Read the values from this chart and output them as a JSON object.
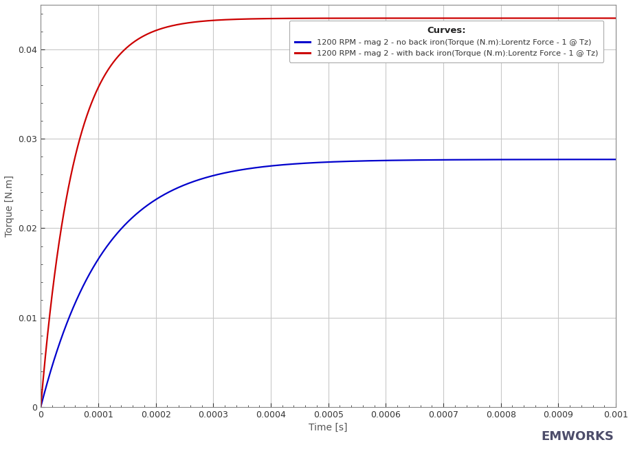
{
  "title": "",
  "xlabel": "Time [s]",
  "ylabel": "Torque [N.m]",
  "xlim": [
    0,
    0.001
  ],
  "ylim": [
    0,
    0.045
  ],
  "yticks": [
    0,
    0.01,
    0.02,
    0.03,
    0.04
  ],
  "xticks": [
    0,
    0.0001,
    0.0002,
    0.0003,
    0.0004,
    0.0005,
    0.0006,
    0.0007,
    0.0008,
    0.0009,
    0.001
  ],
  "xtick_labels": [
    "0",
    "0.0001",
    "0.0002",
    "0.0003",
    "0.0004",
    "0.0005",
    "0.0006",
    "0.0007",
    "0.0008",
    "0.0009",
    "0.001"
  ],
  "ytick_labels": [
    "0",
    "0.01",
    "0.02",
    "0.03",
    "0.04"
  ],
  "blue_label": "1200 RPM - mag 2 - no back iron(Torque (N.m):Lorentz Force - 1 @ Tz)",
  "red_label": "1200 RPM - mag 2 - with back iron(Torque (N.m):Lorentz Force - 1 @ Tz)",
  "legend_title": "Curves:",
  "blue_color": "#0000CC",
  "red_color": "#CC0000",
  "blue_asymptote": 0.0277,
  "blue_tau": 0.00011,
  "red_asymptote": 0.0435,
  "red_tau": 5.8e-05,
  "background_color": "#FFFFFF",
  "plot_bg_color": "#FFFFFF",
  "grid_color": "#C8C8C8",
  "line_width": 1.6,
  "font_color": "#555555",
  "tick_color": "#333333",
  "emworks_logo_text": "EMWORKS"
}
